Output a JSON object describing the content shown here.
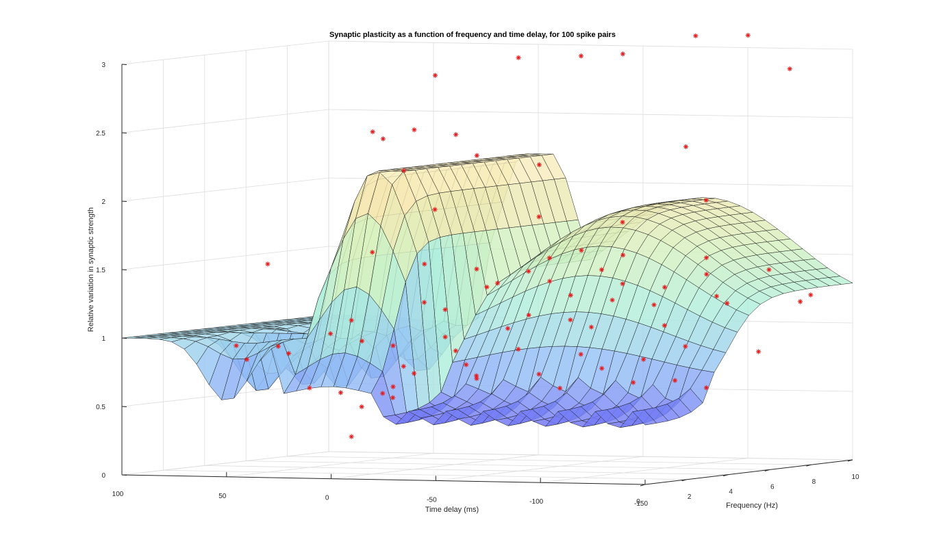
{
  "chart_data": {
    "type": "surface3d",
    "title": "Synaptic plasticity as a function of frequency and time delay, for 100 spike pairs",
    "xlabel": "Time delay (ms)",
    "ylabel": "Frequency (Hz)",
    "zlabel": "Relative variation in synaptic strength",
    "xlim": [
      -150,
      100
    ],
    "ylim": [
      0,
      10
    ],
    "zlim": [
      0,
      3
    ],
    "x_ticks": [
      "100",
      "50",
      "0",
      "-50",
      "-100",
      "-150"
    ],
    "y_ticks": [
      "0",
      "2",
      "4",
      "6",
      "8",
      "10"
    ],
    "z_ticks": [
      "0",
      "0.5",
      "1",
      "1.5",
      "2",
      "2.5",
      "3"
    ],
    "grid": true,
    "series": [
      {
        "kind": "surface",
        "colormap": "pastel-parula"
      },
      {
        "kind": "scatter",
        "marker": "asterisk",
        "color": "#e41a1c",
        "points": [
          [
            -85,
            9,
            3.1
          ],
          [
            -105,
            9.5,
            3.1
          ],
          [
            -40,
            5,
            3.0
          ],
          [
            -60,
            6,
            3.0
          ],
          [
            -70,
            7,
            3.0
          ],
          [
            -20,
            3,
            2.9
          ],
          [
            -120,
            10,
            2.85
          ],
          [
            -10,
            3,
            2.5
          ],
          [
            -5,
            2,
            2.45
          ],
          [
            0,
            2,
            2.5
          ],
          [
            -20,
            4,
            2.45
          ],
          [
            -30,
            4,
            2.3
          ],
          [
            -110,
            6,
            2.35
          ],
          [
            -40,
            6,
            2.2
          ],
          [
            -5,
            3,
            2.2
          ],
          [
            -10,
            4,
            1.9
          ],
          [
            -30,
            7,
            1.8
          ],
          [
            -60,
            8,
            1.75
          ],
          [
            -90,
            9,
            1.9
          ],
          [
            -70,
            5,
            1.6
          ],
          [
            -80,
            6,
            1.55
          ],
          [
            -100,
            8,
            1.5
          ],
          [
            -110,
            7,
            1.4
          ],
          [
            -120,
            9,
            1.4
          ],
          [
            -90,
            7,
            1.3
          ],
          [
            60,
            3,
            1.5
          ],
          [
            10,
            3,
            1.6
          ],
          [
            -5,
            4,
            1.5
          ],
          [
            -20,
            5,
            1.45
          ],
          [
            -30,
            5,
            1.35
          ],
          [
            -45,
            6,
            1.35
          ],
          [
            -55,
            6,
            1.25
          ],
          [
            -65,
            7,
            1.2
          ],
          [
            -75,
            8,
            1.15
          ],
          [
            -95,
            9,
            1.2
          ],
          [
            -100,
            9,
            1.15
          ],
          [
            -125,
            10,
            1.15
          ],
          [
            -130,
            10,
            1.2
          ],
          [
            -80,
            8,
            1.0
          ],
          [
            -90,
            8,
            0.85
          ],
          [
            -115,
            9,
            0.8
          ],
          [
            75,
            3,
            0.9
          ],
          [
            70,
            3,
            0.8
          ],
          [
            55,
            3,
            0.9
          ],
          [
            50,
            3,
            0.85
          ],
          [
            30,
            3,
            1.0
          ],
          [
            20,
            3,
            1.1
          ],
          [
            15,
            3,
            0.95
          ],
          [
            10,
            4,
            0.9
          ],
          [
            5,
            4,
            0.75
          ],
          [
            0,
            4,
            0.7
          ],
          [
            -5,
            5,
            0.95
          ],
          [
            -10,
            5,
            0.85
          ],
          [
            -15,
            5,
            0.75
          ],
          [
            -20,
            5,
            0.65
          ],
          [
            15,
            4,
            0.55
          ],
          [
            10,
            4,
            0.6
          ],
          [
            20,
            5,
            0.5
          ],
          [
            25,
            4,
            0.45
          ],
          [
            20,
            3,
            0.25
          ],
          [
            -30,
            6,
            0.85
          ],
          [
            -50,
            7,
            0.8
          ],
          [
            -60,
            7,
            0.7
          ],
          [
            -70,
            8,
            0.75
          ],
          [
            -75,
            7,
            0.6
          ],
          [
            -85,
            8,
            0.6
          ],
          [
            -10,
            6,
            0.65
          ],
          [
            -25,
            6,
            1.0
          ],
          [
            -35,
            6,
            1.1
          ],
          [
            -45,
            7,
            1.05
          ],
          [
            -55,
            7,
            1.0
          ],
          [
            -40,
            7,
            0.55
          ],
          [
            -30,
            7,
            0.65
          ],
          [
            -100,
            8,
            0.55
          ],
          [
            40,
            3,
            0.6
          ],
          [
            35,
            4,
            0.55
          ],
          [
            5,
            5,
            1.2
          ],
          [
            -5,
            5,
            1.15
          ],
          [
            -15,
            6,
            1.3
          ],
          [
            -25,
            7,
            1.4
          ],
          [
            -35,
            7,
            1.5
          ],
          [
            -50,
            8,
            1.4
          ],
          [
            -60,
            8,
            1.3
          ]
        ]
      }
    ]
  }
}
